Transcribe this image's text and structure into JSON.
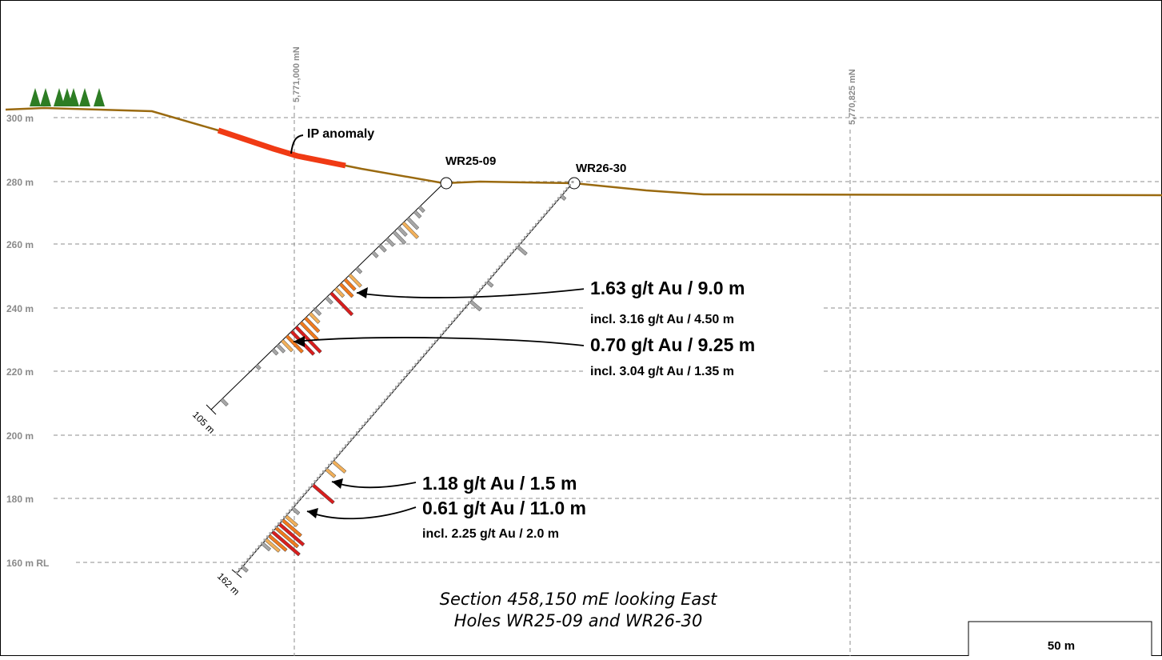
{
  "rl_levels": [
    {
      "value": 300,
      "label": "300 m"
    },
    {
      "value": 280,
      "label": "280 m"
    },
    {
      "value": 260,
      "label": "260 m"
    },
    {
      "value": 240,
      "label": "240 m"
    },
    {
      "value": 220,
      "label": "220 m"
    },
    {
      "value": 200,
      "label": "200 m"
    },
    {
      "value": 180,
      "label": "180 m"
    },
    {
      "value": 160,
      "label": "160 m RL"
    }
  ],
  "northings": [
    {
      "label": "5,771,000 mN"
    },
    {
      "label": "5,770,825 mN"
    }
  ],
  "ip_label": "IP anomaly",
  "holes": [
    {
      "id": "WR25-09",
      "end_depth": "105 m"
    },
    {
      "id": "WR26-30",
      "end_depth": "162 m"
    }
  ],
  "intercepts": [
    {
      "main": "1.63 g/t Au / 9.0 m",
      "incl": "incl. 3.16 g/t Au / 4.50 m"
    },
    {
      "main": "0.70 g/t Au / 9.25 m",
      "incl": "incl. 3.04 g/t Au / 1.35 m"
    },
    {
      "main": "1.18 g/t Au / 1.5 m",
      "incl": ""
    },
    {
      "main": "0.61 g/t Au / 11.0 m",
      "incl": "incl. 2.25 g/t Au / 2.0 m"
    }
  ],
  "caption": {
    "line1": "Section 458,150 mE looking East",
    "line2": "Holes WR25-09 and WR26-30"
  },
  "scale_bar": "50 m",
  "colors": {
    "topography": "#9a6a10",
    "ip_anomaly": "#f03a14",
    "grade_high": "#d81e1e",
    "grade_mid": "#f07a1e",
    "grade_low": "#f2b05a",
    "grade_background": "#a6a6a6",
    "trees": "#2d7d24",
    "grid": "#8c8c8c"
  }
}
